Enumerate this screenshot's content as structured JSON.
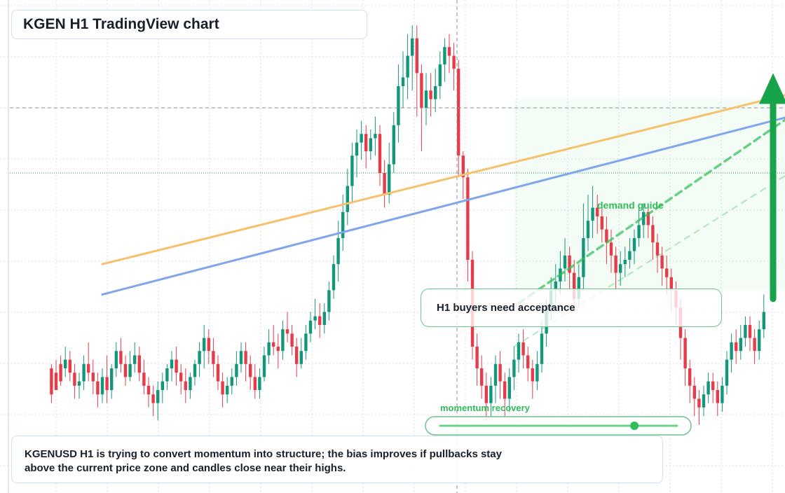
{
  "title": "KGEN H1 TradingView chart",
  "callout": "H1 buyers need acceptance",
  "zone_label": "demand guide",
  "momentum_label": "momentum recovery",
  "momentum_level": 0.82,
  "summary": {
    "line1": "KGENUSD H1 is trying to convert momentum into structure; the bias improves if pullbacks stay",
    "line2": "above the current price zone and candles close near their highs."
  },
  "colors": {
    "up": "#13977a",
    "down": "#e83b4a",
    "upper_trendline": "#f5c26b",
    "lower_trendline": "#7ea5ee",
    "guide": "#2fbd58",
    "arrow": "#17a34a",
    "grid": "#d9dee5"
  },
  "chart_data": {
    "type": "candlestick",
    "title": "KGEN H1 TradingView chart",
    "ylim": [
      0,
      100
    ],
    "grid": true,
    "candles": [
      [
        18,
        20,
        14,
        21,
        12
      ],
      [
        20,
        19,
        15,
        22,
        16
      ],
      [
        22,
        21,
        17,
        23,
        16
      ],
      [
        24,
        20,
        22,
        25,
        18
      ],
      [
        26,
        22,
        19,
        24,
        17
      ],
      [
        28,
        19,
        16,
        21,
        13
      ],
      [
        30,
        16,
        17,
        19,
        13
      ],
      [
        32,
        17,
        21,
        23,
        15
      ],
      [
        34,
        21,
        19,
        26,
        17
      ],
      [
        36,
        19,
        17,
        22,
        14
      ],
      [
        38,
        17,
        14,
        19,
        11
      ],
      [
        40,
        14,
        18,
        20,
        12
      ],
      [
        42,
        18,
        15,
        23,
        12
      ],
      [
        44,
        15,
        20,
        21,
        13
      ],
      [
        46,
        20,
        24,
        26,
        18
      ],
      [
        48,
        24,
        21,
        27,
        19
      ],
      [
        50,
        21,
        18,
        23,
        16
      ],
      [
        52,
        18,
        21,
        24,
        17
      ],
      [
        54,
        21,
        23,
        26,
        19
      ],
      [
        56,
        23,
        19,
        25,
        17
      ],
      [
        58,
        19,
        16,
        22,
        14
      ],
      [
        60,
        16,
        14,
        18,
        11
      ],
      [
        62,
        14,
        12,
        16,
        9
      ],
      [
        64,
        12,
        15,
        17,
        8
      ],
      [
        66,
        15,
        17,
        19,
        12
      ],
      [
        68,
        17,
        20,
        21,
        15
      ],
      [
        70,
        20,
        22,
        24,
        17
      ],
      [
        72,
        22,
        19,
        25,
        16
      ],
      [
        74,
        19,
        17,
        21,
        14
      ],
      [
        76,
        17,
        15,
        20,
        12
      ],
      [
        78,
        15,
        18,
        19,
        13
      ],
      [
        80,
        18,
        21,
        22,
        16
      ],
      [
        82,
        21,
        24,
        26,
        18
      ],
      [
        84,
        24,
        27,
        30,
        20
      ],
      [
        86,
        27,
        24,
        29,
        21
      ],
      [
        88,
        24,
        21,
        27,
        18
      ],
      [
        90,
        21,
        17,
        23,
        15
      ],
      [
        92,
        17,
        14,
        19,
        11
      ],
      [
        94,
        14,
        16,
        18,
        12
      ],
      [
        96,
        16,
        18,
        20,
        14
      ],
      [
        98,
        18,
        21,
        24,
        16
      ],
      [
        100,
        21,
        24,
        26,
        19
      ],
      [
        102,
        24,
        21,
        26,
        17
      ],
      [
        104,
        21,
        18,
        23,
        15
      ],
      [
        106,
        18,
        15,
        21,
        13
      ],
      [
        108,
        15,
        18,
        20,
        13
      ],
      [
        110,
        18,
        23,
        25,
        17
      ],
      [
        112,
        23,
        26,
        29,
        21
      ],
      [
        114,
        26,
        25,
        30,
        23
      ],
      [
        116,
        25,
        24,
        28,
        20
      ],
      [
        118,
        24,
        29,
        31,
        22
      ],
      [
        120,
        29,
        28,
        33,
        26
      ],
      [
        122,
        28,
        25,
        30,
        23
      ],
      [
        124,
        25,
        21,
        27,
        18
      ],
      [
        126,
        21,
        24,
        27,
        20
      ],
      [
        128,
        24,
        28,
        30,
        22
      ],
      [
        130,
        28,
        31,
        33,
        26
      ],
      [
        132,
        31,
        32,
        36,
        29
      ],
      [
        134,
        32,
        30,
        35,
        27
      ],
      [
        136,
        30,
        33,
        35,
        28
      ],
      [
        138,
        33,
        38,
        40,
        31
      ],
      [
        140,
        38,
        44,
        46,
        36
      ],
      [
        142,
        44,
        50,
        54,
        40
      ],
      [
        144,
        50,
        56,
        60,
        47
      ],
      [
        146,
        56,
        62,
        66,
        53
      ],
      [
        148,
        62,
        69,
        72,
        58
      ],
      [
        150,
        69,
        72,
        75,
        64
      ],
      [
        152,
        72,
        74,
        77,
        68
      ],
      [
        154,
        74,
        70,
        76,
        66
      ],
      [
        156,
        70,
        73,
        75,
        68
      ],
      [
        158,
        73,
        74,
        78,
        69
      ],
      [
        160,
        74,
        65,
        76,
        62
      ],
      [
        162,
        65,
        60,
        68,
        57
      ],
      [
        164,
        60,
        67,
        72,
        58
      ],
      [
        166,
        67,
        76,
        79,
        65
      ],
      [
        168,
        76,
        85,
        90,
        72
      ],
      [
        170,
        85,
        87,
        93,
        80
      ],
      [
        172,
        87,
        92,
        97,
        82
      ],
      [
        174,
        92,
        96,
        99,
        84
      ],
      [
        176,
        96,
        88,
        99,
        78
      ],
      [
        178,
        88,
        80,
        90,
        70
      ],
      [
        180,
        80,
        84,
        88,
        76
      ],
      [
        182,
        84,
        82,
        88,
        78
      ],
      [
        184,
        82,
        85,
        89,
        79
      ],
      [
        186,
        85,
        90,
        93,
        82
      ],
      [
        188,
        90,
        94,
        96,
        86
      ],
      [
        190,
        94,
        92,
        97,
        88
      ],
      [
        192,
        92,
        89,
        95,
        84
      ],
      [
        194,
        89,
        69,
        91,
        64
      ],
      [
        196,
        69,
        64,
        70,
        59
      ],
      [
        198,
        64,
        45,
        66,
        40
      ],
      [
        200,
        45,
        25,
        47,
        22
      ],
      [
        202,
        25,
        20,
        28,
        16
      ],
      [
        204,
        20,
        16,
        23,
        13
      ],
      [
        206,
        16,
        12,
        19,
        8
      ],
      [
        208,
        12,
        16,
        18,
        9
      ],
      [
        210,
        16,
        21,
        23,
        12
      ],
      [
        212,
        21,
        17,
        24,
        13
      ],
      [
        214,
        17,
        13,
        19,
        9
      ],
      [
        216,
        13,
        18,
        20,
        10
      ],
      [
        218,
        18,
        22,
        25,
        15
      ],
      [
        220,
        22,
        26,
        28,
        19
      ],
      [
        222,
        26,
        23,
        29,
        20
      ],
      [
        224,
        23,
        20,
        25,
        17
      ],
      [
        226,
        20,
        17,
        22,
        13
      ],
      [
        228,
        17,
        21,
        24,
        15
      ],
      [
        230,
        21,
        28,
        31,
        19
      ],
      [
        232,
        28,
        34,
        36,
        25
      ],
      [
        234,
        34,
        38,
        41,
        31
      ],
      [
        236,
        38,
        40,
        44,
        35
      ],
      [
        238,
        40,
        43,
        47,
        37
      ],
      [
        240,
        43,
        46,
        50,
        40
      ],
      [
        242,
        46,
        42,
        48,
        38
      ],
      [
        244,
        42,
        36,
        45,
        33
      ],
      [
        246,
        36,
        41,
        44,
        34
      ],
      [
        248,
        41,
        50,
        58,
        38
      ],
      [
        250,
        50,
        54,
        60,
        47
      ],
      [
        252,
        54,
        57,
        62,
        50
      ],
      [
        254,
        57,
        55,
        60,
        51
      ],
      [
        256,
        55,
        52,
        58,
        49
      ],
      [
        258,
        52,
        49,
        55,
        44
      ],
      [
        260,
        49,
        46,
        52,
        42
      ],
      [
        262,
        46,
        42,
        48,
        38
      ],
      [
        264,
        42,
        44,
        47,
        39
      ],
      [
        266,
        44,
        45,
        48,
        41
      ],
      [
        268,
        45,
        47,
        50,
        43
      ],
      [
        270,
        47,
        50,
        52,
        44
      ],
      [
        272,
        50,
        53,
        57,
        48
      ],
      [
        274,
        53,
        56,
        58,
        50
      ],
      [
        276,
        56,
        53,
        58,
        50
      ],
      [
        278,
        53,
        49,
        55,
        45
      ],
      [
        280,
        49,
        46,
        51,
        42
      ],
      [
        282,
        46,
        43,
        48,
        39
      ],
      [
        284,
        43,
        41,
        46,
        37
      ],
      [
        286,
        41,
        38,
        43,
        33
      ],
      [
        288,
        38,
        34,
        40,
        30
      ],
      [
        290,
        34,
        27,
        36,
        22
      ],
      [
        292,
        27,
        20,
        29,
        16
      ],
      [
        294,
        20,
        16,
        22,
        12
      ],
      [
        296,
        16,
        13,
        18,
        9
      ],
      [
        298,
        13,
        11,
        15,
        7
      ],
      [
        300,
        11,
        14,
        16,
        9
      ],
      [
        302,
        14,
        17,
        19,
        12
      ],
      [
        304,
        17,
        15,
        19,
        12
      ],
      [
        306,
        15,
        12,
        17,
        9
      ],
      [
        308,
        12,
        16,
        18,
        10
      ],
      [
        310,
        16,
        22,
        24,
        14
      ],
      [
        312,
        22,
        26,
        28,
        19
      ],
      [
        314,
        26,
        24,
        29,
        21
      ],
      [
        316,
        24,
        27,
        30,
        22
      ],
      [
        318,
        27,
        30,
        32,
        25
      ],
      [
        320,
        30,
        27,
        32,
        24
      ],
      [
        322,
        27,
        24,
        29,
        21
      ],
      [
        324,
        24,
        29,
        31,
        22
      ],
      [
        326,
        29,
        33,
        37,
        27
      ]
    ],
    "trendlines": [
      {
        "name": "upper",
        "points": [
          [
            40,
            44
          ],
          [
            366,
            87
          ]
        ]
      },
      {
        "name": "lower",
        "points": [
          [
            40,
            37
          ],
          [
            366,
            82
          ]
        ]
      },
      {
        "name": "guide-strong",
        "points": [
          [
            220,
            35
          ],
          [
            340,
            79
          ]
        ]
      },
      {
        "name": "guide-soft",
        "points": [
          [
            218,
            25
          ],
          [
            346,
            68
          ]
        ]
      }
    ],
    "horizontal_levels": [
      80,
      65
    ],
    "zone": {
      "x": [
        218,
        352
      ],
      "y": [
        38,
        82
      ]
    },
    "arrow": {
      "x": 330,
      "from": 36,
      "to": 88
    }
  }
}
